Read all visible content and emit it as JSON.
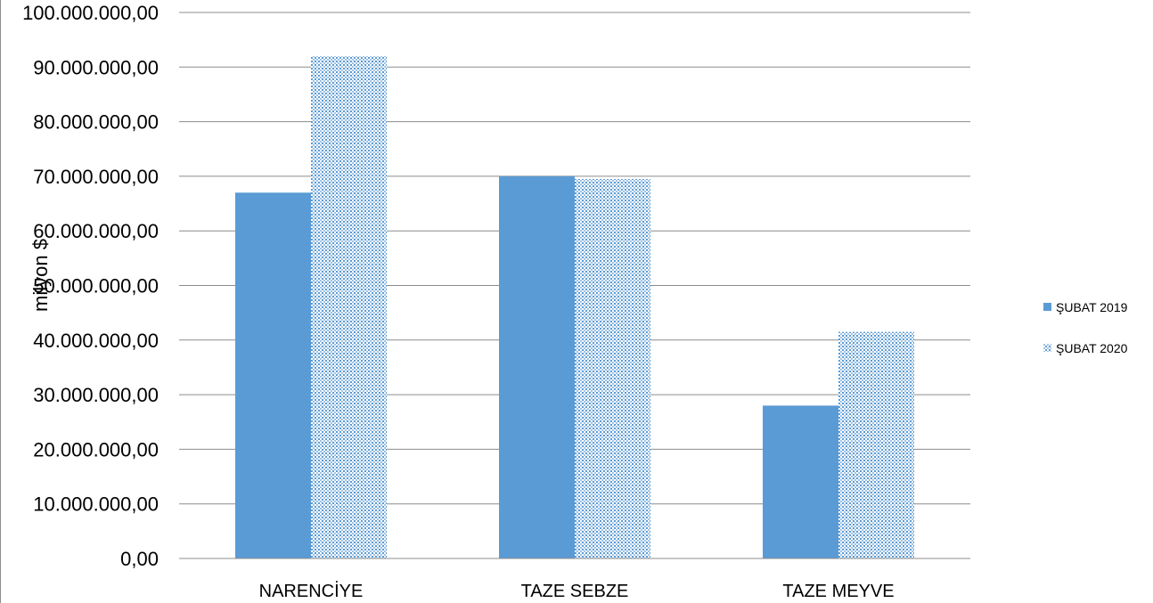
{
  "chart_data": {
    "type": "bar",
    "title": "",
    "xlabel": "",
    "ylabel": "milyon $",
    "categories": [
      "NARENCİYE",
      "TAZE SEBZE",
      "TAZE MEYVE"
    ],
    "series": [
      {
        "name": "ŞUBAT 2019",
        "values": [
          67000000,
          70000000,
          28000000
        ],
        "color": "#5b9bd5",
        "pattern": "solid"
      },
      {
        "name": "ŞUBAT 2020",
        "values": [
          92000000,
          69500000,
          41500000
        ],
        "color": "#5b9bd5",
        "pattern": "dotted"
      }
    ],
    "ylim": [
      0,
      100000000
    ],
    "yticks": [
      0,
      10000000,
      20000000,
      30000000,
      40000000,
      50000000,
      60000000,
      70000000,
      80000000,
      90000000,
      100000000
    ],
    "ytick_labels": [
      "0,00",
      "10.000.000,00",
      "20.000.000,00",
      "30.000.000,00",
      "40.000.000,00",
      "50.000.000,00",
      "60.000.000,00",
      "70.000.000,00",
      "80.000.000,00",
      "90.000.000,00",
      "100.000.000,00"
    ],
    "grid": true,
    "legend_position": "right"
  }
}
